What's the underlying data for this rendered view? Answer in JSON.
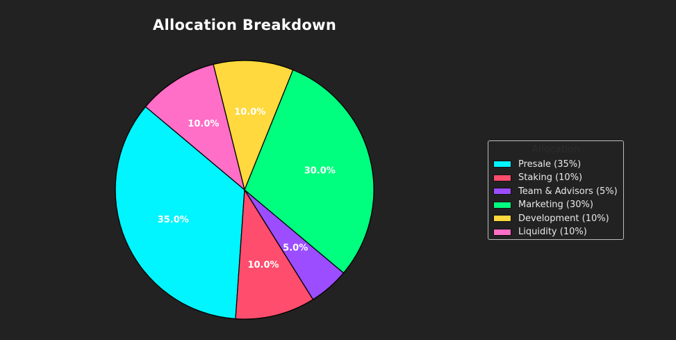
{
  "chart_data": {
    "type": "pie",
    "title": "Allocation Breakdown",
    "categories": [
      "Presale",
      "Staking",
      "Team & Advisors",
      "Marketing",
      "Development",
      "Liquidity"
    ],
    "values": [
      35,
      10,
      5,
      30,
      10,
      10
    ],
    "slice_labels": [
      "35.0%",
      "10.0%",
      "5.0%",
      "30.0%",
      "10.0%",
      "10.0%"
    ],
    "colors": [
      "#00f5ff",
      "#ff4d6d",
      "#9b4dff",
      "#00ff7f",
      "#ffd93d",
      "#ff6ec7"
    ],
    "start_angle_deg": 140,
    "direction": "counterclockwise",
    "legend": {
      "title": "Allocation",
      "placement": "center-right",
      "entries": [
        "Presale (35%)",
        "Staking (10%)",
        "Team & Advisors (5%)",
        "Marketing (30%)",
        "Development (10%)",
        "Liquidity (10%)"
      ]
    }
  }
}
